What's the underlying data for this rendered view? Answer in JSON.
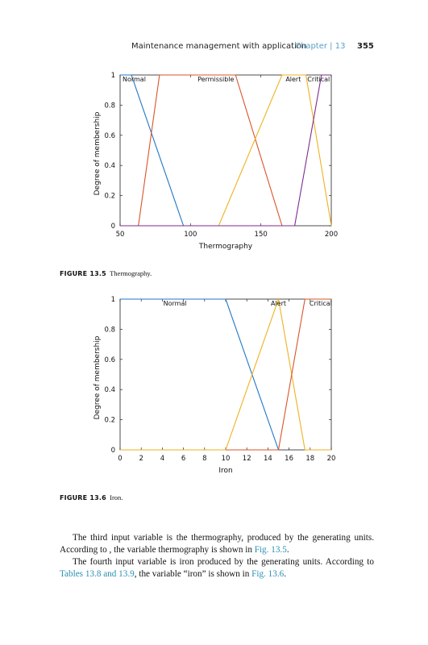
{
  "header": {
    "title": "Maintenance management with application",
    "chapter": "Chapter | 13",
    "page_number": "355"
  },
  "figures": [
    {
      "caption_label": "FIGURE 13.5",
      "caption_text": "Thermography."
    },
    {
      "caption_label": "FIGURE 13.6",
      "caption_text": "Iron."
    }
  ],
  "chart_data": [
    {
      "type": "line",
      "title": "",
      "xlabel": "Thermography",
      "ylabel": "Degree of membership",
      "xlim": [
        50,
        200
      ],
      "ylim": [
        0,
        1
      ],
      "xticks": [
        "50",
        "100",
        "150",
        "200"
      ],
      "yticks": [
        "0",
        "0.2",
        "0.4",
        "0.6",
        "0.8",
        "1"
      ],
      "grid": false,
      "series": [
        {
          "name": "Normal",
          "color": "#1f77c4",
          "x": [
            50,
            58,
            95
          ],
          "y": [
            1,
            1,
            0
          ]
        },
        {
          "name": "Permissible",
          "color": "#d9542a",
          "x": [
            63,
            78,
            132,
            165
          ],
          "y": [
            0,
            1,
            1,
            0
          ]
        },
        {
          "name": "Alert",
          "color": "#eeb21f",
          "x": [
            120,
            165,
            182,
            200
          ],
          "y": [
            0,
            1,
            1,
            0
          ]
        },
        {
          "name": "Critical",
          "color": "#7b2d8e",
          "x": [
            50,
            174,
            193,
            200
          ],
          "y": [
            0,
            0,
            1,
            1
          ]
        }
      ],
      "labels": [
        {
          "text": "Normal",
          "x": 60
        },
        {
          "text": "Permissible",
          "x": 118
        },
        {
          "text": "Alert",
          "x": 173
        },
        {
          "text": "Critical",
          "x": 191
        }
      ]
    },
    {
      "type": "line",
      "title": "",
      "xlabel": "Iron",
      "ylabel": "Degree of membership",
      "xlim": [
        0,
        20
      ],
      "ylim": [
        0,
        1
      ],
      "xticks": [
        "0",
        "2",
        "4",
        "6",
        "8",
        "10",
        "12",
        "14",
        "16",
        "18",
        "20"
      ],
      "yticks": [
        "0",
        "0.2",
        "0.4",
        "0.6",
        "0.8",
        "1"
      ],
      "grid": false,
      "series": [
        {
          "name": "Normal",
          "color": "#1f77c4",
          "x": [
            0,
            10,
            15
          ],
          "y": [
            1,
            1,
            0
          ]
        },
        {
          "name": "Alert",
          "color": "#eeb21f",
          "x": [
            0,
            10,
            15,
            17.5,
            20
          ],
          "y": [
            0,
            0,
            1,
            0,
            0
          ]
        },
        {
          "name": "Critical",
          "color": "#d9542a",
          "x": [
            10,
            15,
            17.5,
            20
          ],
          "y": [
            0,
            0,
            1,
            1
          ]
        }
      ],
      "labels": [
        {
          "text": "Normal",
          "x": 5.2
        },
        {
          "text": "Alert",
          "x": 15
        },
        {
          "text": "Critical",
          "x": 19
        }
      ]
    }
  ],
  "body": {
    "p1": "The third input variable is the thermography, produced by the generating units. According to , the variable thermography is shown in ",
    "p1_link": "Fig. 13.5",
    "p1_end": ".",
    "p2_start": "The fourth input variable is iron produced by the generating units. According to ",
    "p2_link1": "Tables 13.8 and 13.9",
    "p2_mid": ", the variable “iron” is shown in ",
    "p2_link2": "Fig. 13.6",
    "p2_end": "."
  }
}
